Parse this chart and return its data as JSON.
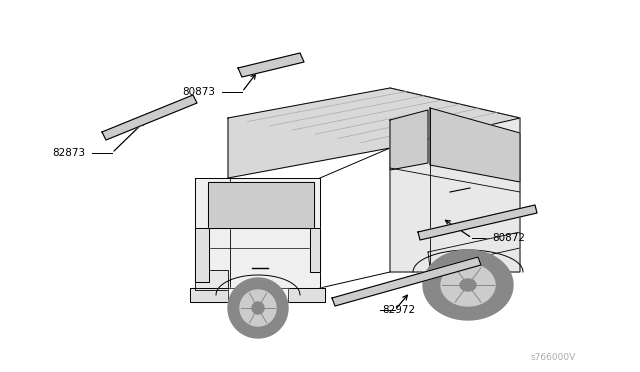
{
  "bg_color": "#ffffff",
  "line_color": "#000000",
  "gray_color": "#888888",
  "label_color": "#000000",
  "watermark": "s766000V",
  "watermark_color": "#aaaaaa",
  "body_fill_right": "#e8e8e8",
  "body_fill_roof": "#d8d8d8",
  "body_fill_rear": "#f0f0f0",
  "window_fill": "#cccccc",
  "bumper_fill": "#e0e0e0",
  "molding_fill": "#cccccc",
  "wheel_fill": "#888888",
  "wheel_inner": "#cccccc"
}
